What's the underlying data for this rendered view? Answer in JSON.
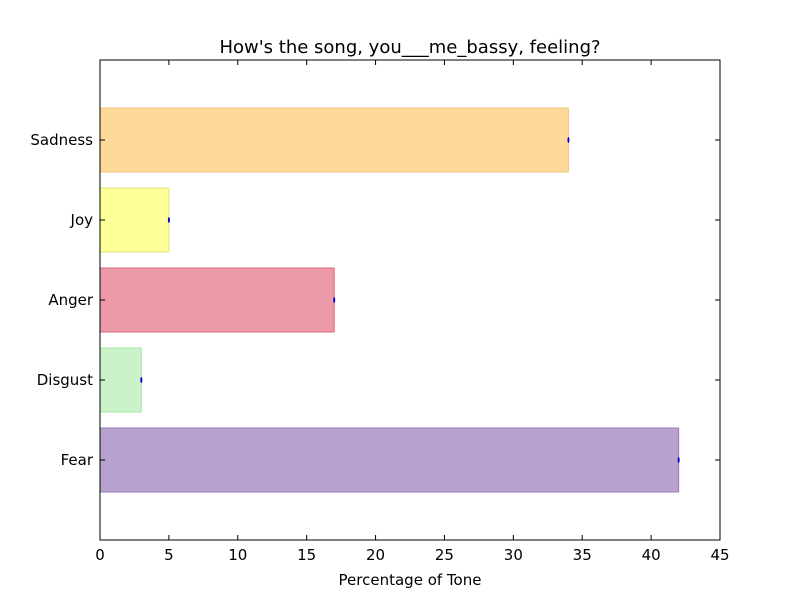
{
  "chart_data": {
    "type": "bar",
    "orientation": "horizontal",
    "title": "How's the song, you___me_bassy, feeling?",
    "xlabel": "Percentage of Tone",
    "ylabel": "",
    "xlim": [
      0,
      45
    ],
    "xticks": [
      "0",
      "5",
      "10",
      "15",
      "20",
      "25",
      "30",
      "35",
      "40",
      "45"
    ],
    "categories": [
      "Fear",
      "Disgust",
      "Anger",
      "Joy",
      "Sadness"
    ],
    "values": [
      42,
      3,
      17,
      5,
      34
    ],
    "colors": [
      "#b9a1cf",
      "#c9f2c9",
      "#ed9aa8",
      "#ffff99",
      "#ffd999"
    ],
    "edge_colors": [
      "#9a7ab9",
      "#a6e6a6",
      "#d96a7c",
      "#e6e680",
      "#f2c77a"
    ],
    "grid": false,
    "legend": "none"
  }
}
